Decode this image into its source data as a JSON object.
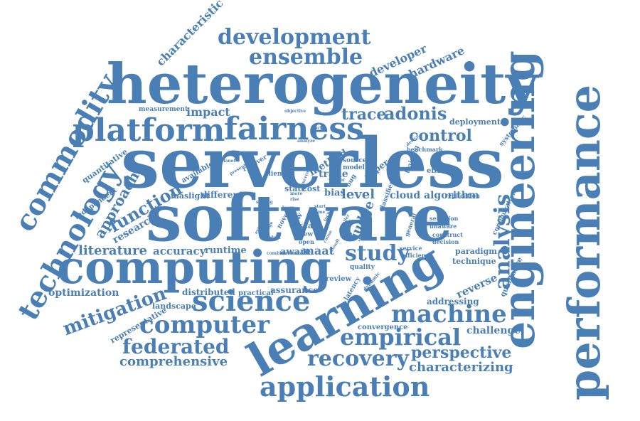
{
  "accent_color": "#4a7fb5",
  "background_color": "#ffffff",
  "words": {
    "serverless": "serverless",
    "software": "software",
    "heterogeneity": "heterogeneity",
    "computing": "computing",
    "learning": "learning",
    "engineering": "engineering",
    "performance": "performance",
    "platform": "platform",
    "fairness": "fairness",
    "development": "development",
    "ensemble": "ensemble",
    "commodity": "commodity",
    "technology": "technology",
    "science": "science",
    "machine": "machine",
    "computer": "computer",
    "application": "application",
    "empirical": "empirical",
    "federated": "federated",
    "recovery": "recovery",
    "mitigation": "mitigation",
    "study": "study",
    "analysis": "analysis",
    "adonis": "adonis",
    "trace": "trace",
    "control": "control",
    "function": "function",
    "approach": "approach",
    "perspective": "perspective",
    "comprehensive": "comprehensive",
    "characterizing": "characterizing",
    "characteristic": "characteristic",
    "developer": "developer",
    "hardware": "hardware",
    "impact": "impact",
    "literature": "literature",
    "accuracy": "accuracy",
    "runtime": "runtime",
    "optimization": "optimization",
    "research": "research",
    "maat": "maat",
    "aware": "aware",
    "level": "level",
    "judge": "judge",
    "trade": "trade",
    "method": "method",
    "challenge": "challenge",
    "reverse": "reverse",
    "addressing": "addressing",
    "cloud_algorithm": "cloud algorithm",
    "deployment": "deployment",
    "measurement": "measurement",
    "quantitative": "quantitative",
    "independent": "independent",
    "faaslight": "faaslight",
    "different": "different",
    "available": "available",
    "landscape": "landscape",
    "distributed": "distributed",
    "practical": "practical",
    "assurance": "assurance",
    "representative": "representative",
    "convergence": "convergence",
    "paradigm": "paradigm",
    "technique": "technique",
    "qualitative": "qualitative",
    "systematic": "systematic",
    "training": "training",
    "efficient": "efficient",
    "replication": "replication",
    "benchmark": "benchmark",
    "configuration": "configuration",
    "selection": "selection",
    "unaware": "unaware",
    "construct": "construct",
    "decision": "decision",
    "general": "general",
    "service": "service",
    "efficiency": "efficiency",
    "quality": "quality",
    "review": "review",
    "latency": "latency",
    "dynamic": "dynamic",
    "state": "state",
    "scale": "scale",
    "cost": "cost",
    "bias": "bias",
    "view": "view",
    "open": "open",
    "flow": "flow",
    "novel": "novel",
    "source": "source",
    "model": "model",
    "paper": "paper",
    "classifier": "classifier",
    "client": "client",
    "recover": "recover",
    "objective": "objective",
    "planet": "planet",
    "rise": "rise",
    "more": "more",
    "extensive": "extensive",
    "combine": "combine",
    "conduct": "conduct",
    "badge": "badge",
    "result": "result",
    "bug": "bug",
    "start": "start",
    "time": "time",
    "learn": "learn",
    "setting": "setting",
    "extension": "extension",
    "analyze": "analyze",
    "present": "present",
    "increase": "increase",
    "vendor": "vendor",
    "smaller": "smaller",
    "focus": "focus",
    "device": "device",
    "cause": "cause",
    "lock": "lock"
  }
}
